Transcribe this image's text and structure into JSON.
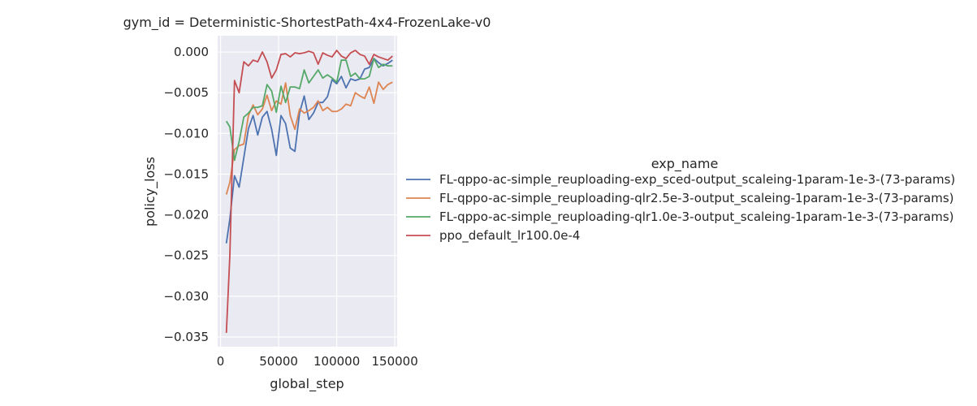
{
  "chart_data": {
    "type": "line",
    "title": "gym_id = Deterministic-ShortestPath-4x4-FrozenLake-v0",
    "xlabel": "global_step",
    "ylabel": "policy_loss",
    "xlim": [
      -2500,
      152000
    ],
    "ylim": [
      -0.0362,
      0.002
    ],
    "xticks": [
      0,
      50000,
      100000,
      150000
    ],
    "xtick_labels": [
      "0",
      "50000",
      "100000",
      "150000"
    ],
    "yticks": [
      -0.035,
      -0.03,
      -0.025,
      -0.02,
      -0.015,
      -0.01,
      -0.005,
      0.0
    ],
    "ytick_labels": [
      "−0.035",
      "−0.030",
      "−0.025",
      "−0.020",
      "−0.015",
      "−0.010",
      "−0.005",
      "0.000"
    ],
    "grid": true,
    "legend": {
      "title": "exp_name",
      "placement": "right"
    },
    "x": [
      5000,
      8000,
      12000,
      16000,
      20000,
      24000,
      28000,
      32000,
      36000,
      40000,
      44000,
      48000,
      52000,
      56000,
      60000,
      64000,
      68000,
      72000,
      76000,
      80000,
      84000,
      88000,
      92000,
      96000,
      100000,
      104000,
      108000,
      112000,
      116000,
      120000,
      124000,
      128000,
      132000,
      136000,
      140000,
      144000,
      148000
    ],
    "series": [
      {
        "name": "FL-qppo-ac-simple_reuploading-exp_sced-output_scaleing-1param-1e-3-(73-params)",
        "color": "#4c72b0",
        "values": [
          -0.0235,
          -0.0205,
          -0.0152,
          -0.0166,
          -0.013,
          -0.0094,
          -0.0078,
          -0.0102,
          -0.008,
          -0.0073,
          -0.0095,
          -0.0127,
          -0.0078,
          -0.0088,
          -0.0118,
          -0.0122,
          -0.0075,
          -0.0054,
          -0.0083,
          -0.0075,
          -0.0062,
          -0.0062,
          -0.0055,
          -0.0034,
          -0.0039,
          -0.003,
          -0.0044,
          -0.0033,
          -0.0035,
          -0.0033,
          -0.0021,
          -0.0019,
          -0.0008,
          -0.0013,
          -0.0017,
          -0.0014,
          -0.001
        ]
      },
      {
        "name": "FL-qppo-ac-simple_reuploading-qlr2.5e-3-output_scaleing-1param-1e-3-(73-params)",
        "color": "#dd8452",
        "values": [
          -0.0175,
          -0.016,
          -0.012,
          -0.0115,
          -0.0113,
          -0.0078,
          -0.0065,
          -0.0077,
          -0.007,
          -0.0053,
          -0.0072,
          -0.006,
          -0.0064,
          -0.0038,
          -0.0078,
          -0.0095,
          -0.007,
          -0.0075,
          -0.0072,
          -0.0068,
          -0.006,
          -0.0072,
          -0.0068,
          -0.0073,
          -0.0073,
          -0.007,
          -0.0064,
          -0.0066,
          -0.005,
          -0.0054,
          -0.0057,
          -0.0043,
          -0.0063,
          -0.0037,
          -0.0046,
          -0.004,
          -0.0037
        ]
      },
      {
        "name": "FL-qppo-ac-simple_reuploading-qlr1.0e-3-output_scaleing-1param-1e-3-(73-params)",
        "color": "#55a868",
        "values": [
          -0.0085,
          -0.0092,
          -0.0133,
          -0.011,
          -0.008,
          -0.0075,
          -0.0068,
          -0.0068,
          -0.0066,
          -0.004,
          -0.0048,
          -0.0074,
          -0.0042,
          -0.0062,
          -0.0043,
          -0.0043,
          -0.0045,
          -0.0022,
          -0.0038,
          -0.003,
          -0.0022,
          -0.0032,
          -0.0028,
          -0.0032,
          -0.0037,
          -0.001,
          -0.001,
          -0.003,
          -0.0026,
          -0.0033,
          -0.0033,
          -0.003,
          -0.0008,
          -0.0019,
          -0.0015,
          -0.0017,
          -0.0017
        ]
      },
      {
        "name": "ppo_default_lr100.0e-4",
        "color": "#c44e52",
        "values": [
          -0.0345,
          -0.025,
          -0.0035,
          -0.005,
          -0.0012,
          -0.0017,
          -0.001,
          -0.0012,
          0.0,
          -0.0012,
          -0.0032,
          -0.0022,
          -0.0003,
          -0.0002,
          -0.0006,
          -0.0001,
          -0.0002,
          -0.0001,
          0.0001,
          -0.0001,
          -0.0015,
          -0.0001,
          -0.0004,
          -0.0006,
          0.0002,
          -0.0005,
          -0.0008,
          -0.0001,
          0.0002,
          -0.0003,
          -0.0005,
          -0.0015,
          -0.0003,
          -0.0006,
          -0.0008,
          -0.001,
          -0.0005
        ]
      }
    ]
  }
}
